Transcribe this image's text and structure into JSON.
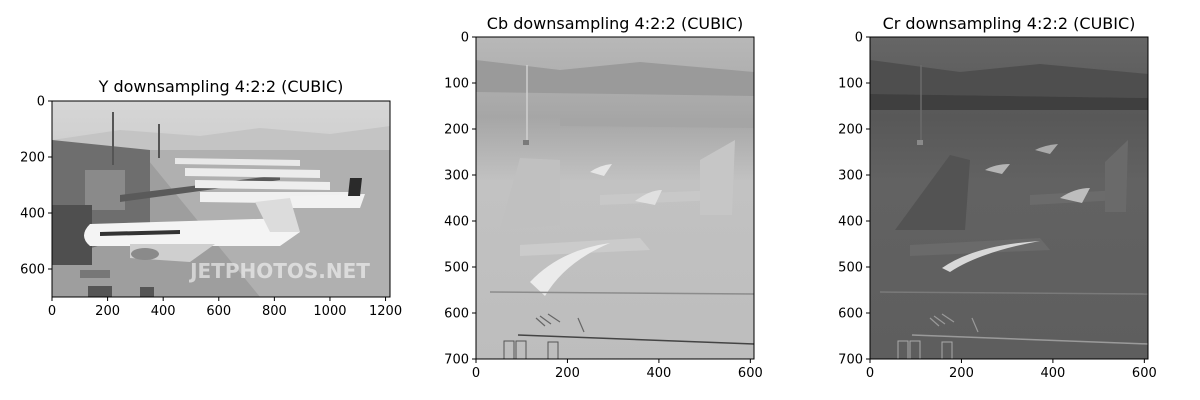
{
  "chart_data": [
    {
      "type": "image",
      "title": "Y downsampling 4:2:2 (CUBIC)",
      "xlim": [
        0,
        1216
      ],
      "ylim": [
        700,
        0
      ],
      "xticks": [
        0,
        200,
        400,
        600,
        800,
        1000,
        1200
      ],
      "yticks": [
        0,
        200,
        400,
        600
      ],
      "image": {
        "colormap": "gray",
        "content": "grayscale airport scene: row of parked airliners at jet bridges, terminal at left",
        "watermark": "JETPHOTOS.NET"
      }
    },
    {
      "type": "image",
      "title": "Cb downsampling 4:2:2 (CUBIC)",
      "xlim": [
        0,
        608
      ],
      "ylim": [
        700,
        0
      ],
      "xticks": [
        0,
        200,
        400,
        600
      ],
      "yticks": [
        0,
        100,
        200,
        300,
        400,
        500,
        600,
        700
      ],
      "image": {
        "colormap": "gray",
        "content": "mostly uniform light-gray chroma channel with faint outlines of aircraft and ground markings"
      }
    },
    {
      "type": "image",
      "title": "Cr downsampling 4:2:2 (CUBIC)",
      "xlim": [
        0,
        608
      ],
      "ylim": [
        700,
        0
      ],
      "xticks": [
        0,
        200,
        400,
        600
      ],
      "yticks": [
        0,
        100,
        200,
        300,
        400,
        500,
        600,
        700
      ],
      "image": {
        "colormap": "gray",
        "content": "mostly uniform dark-gray chroma channel with faint aircraft outlines and bright red-tail highlights"
      }
    }
  ]
}
